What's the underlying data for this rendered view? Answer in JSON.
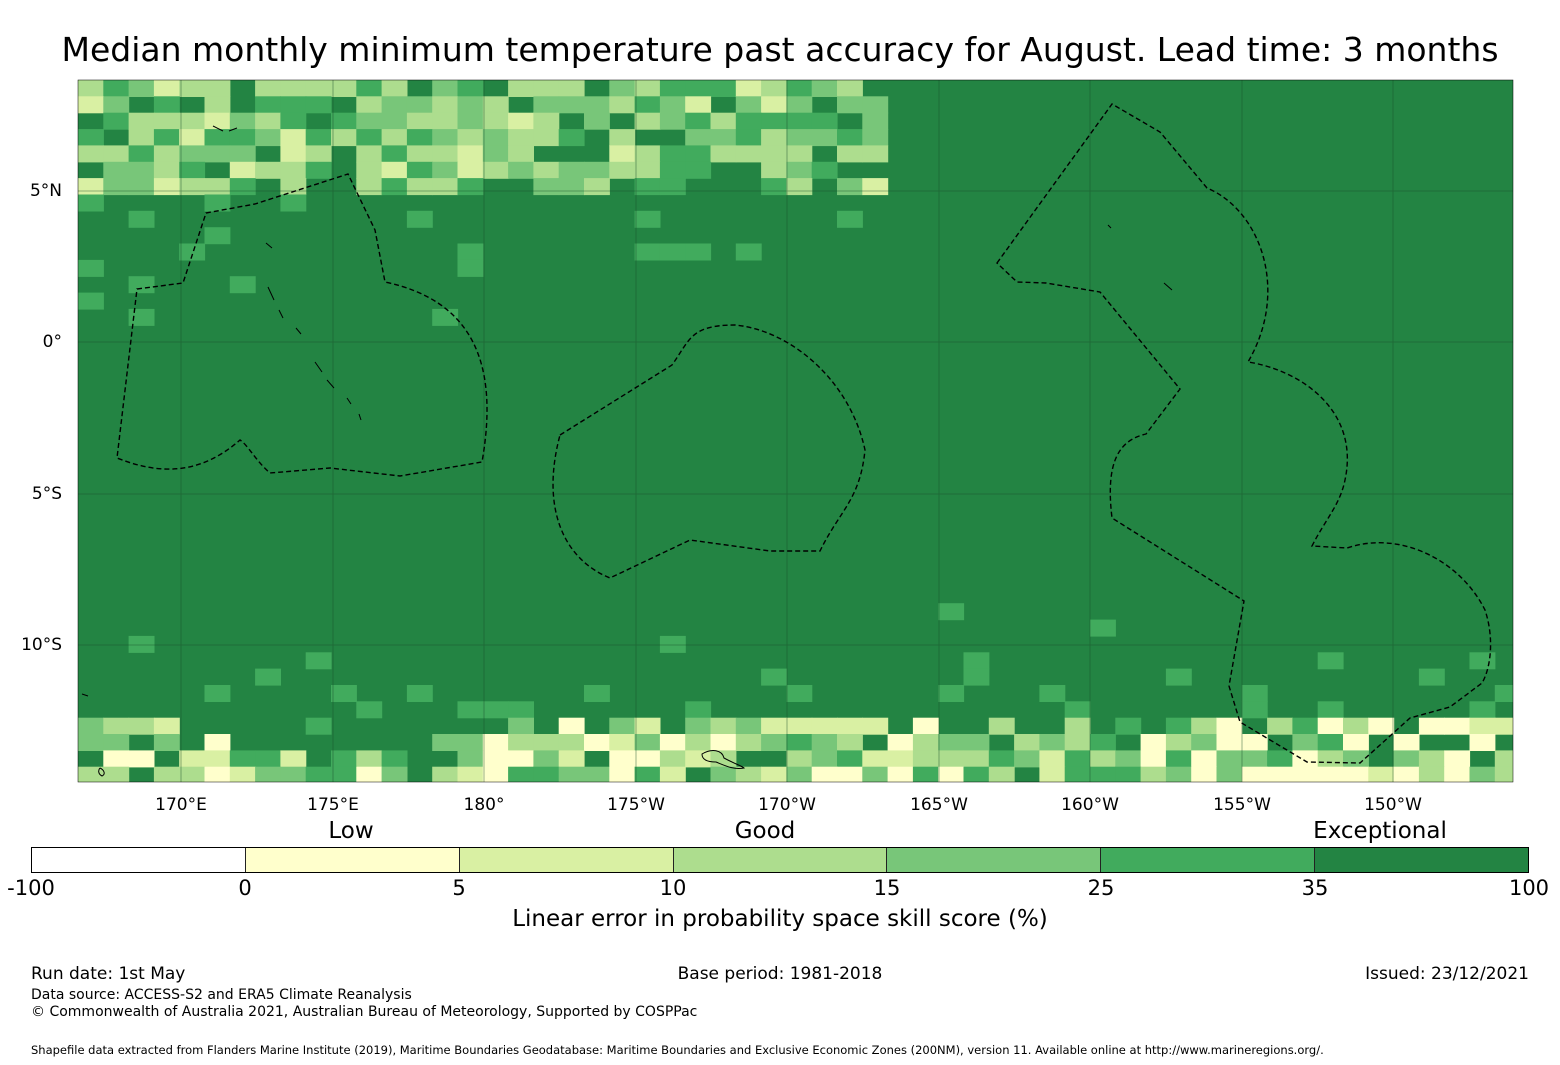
{
  "title": "Median monthly minimum temperature past accuracy for August. Lead time: 3 months",
  "map": {
    "lon_ticks": [
      "170°E",
      "175°E",
      "180°",
      "175°W",
      "170°W",
      "165°W",
      "160°W",
      "155°W",
      "150°W"
    ],
    "lat_ticks": [
      "5°N",
      "0°",
      "5°S",
      "10°S"
    ],
    "colors": [
      "#ffffff",
      "#ffffcc",
      "#d9f0a3",
      "#addd8e",
      "#78c679",
      "#41ab5d",
      "#238443"
    ]
  },
  "legend": {
    "categories": [
      "Low",
      "Good",
      "Exceptional"
    ],
    "boundaries": [
      "-100",
      "0",
      "5",
      "10",
      "15",
      "25",
      "35",
      "100"
    ],
    "label": "Linear error in probability space skill score (%)"
  },
  "footer": {
    "run_date": "Run date: 1st May",
    "base_period": "Base period: 1981-2018",
    "issued": "Issued: 23/12/2021",
    "data_source": "Data source: ACCESS-S2 and ERA5 Climate Reanalysis",
    "copyright": "© Commonwealth of Australia 2021, Australian Bureau of Meteorology, Supported by COSPPac",
    "shapefile": "Shapefile data extracted from Flanders Marine Institute (2019), Maritime Boundaries Geodatabase: Maritime Boundaries and Exclusive Economic Zones (200NM), version 11. Available online at http://www.marineregions.org/."
  }
}
